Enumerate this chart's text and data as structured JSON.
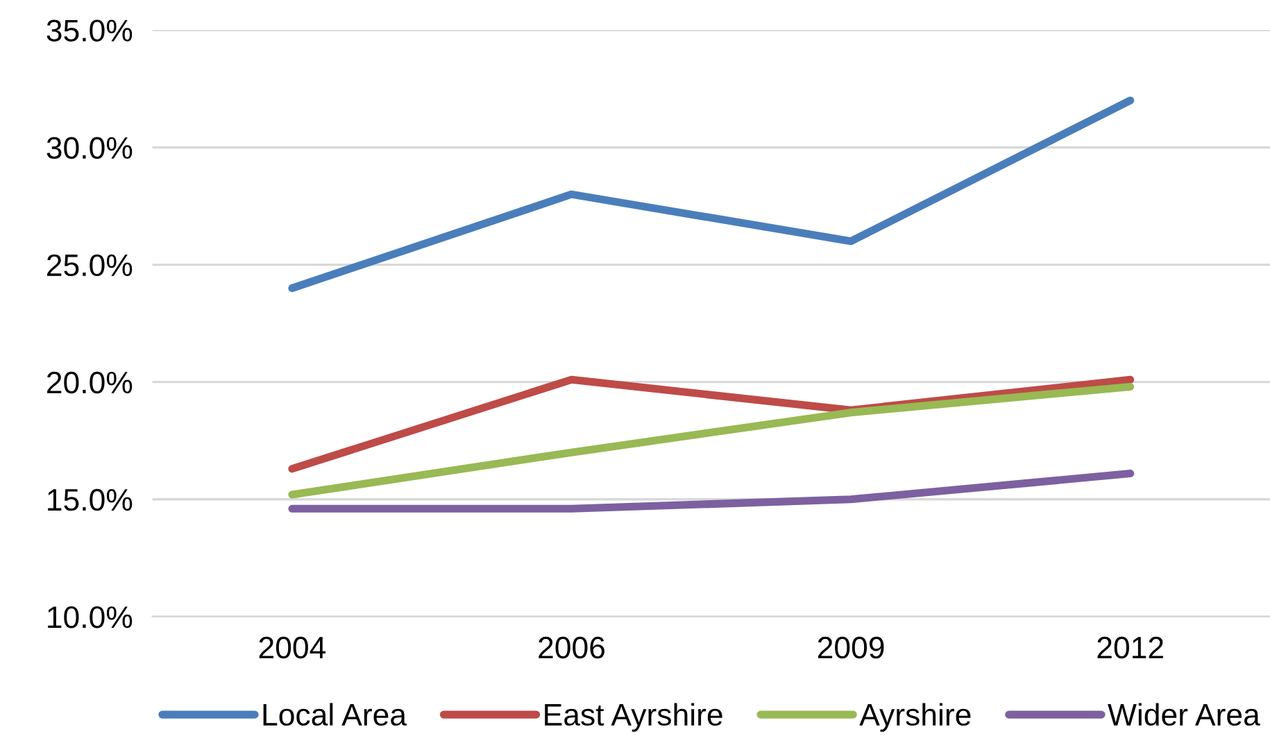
{
  "chart_data": {
    "type": "line",
    "categories": [
      "2004",
      "2006",
      "2009",
      "2012"
    ],
    "series": [
      {
        "name": "Local Area",
        "color": "#4a7ebb",
        "values": [
          24.0,
          28.0,
          26.0,
          32.0
        ]
      },
      {
        "name": "East Ayrshire",
        "color": "#be4b48",
        "values": [
          16.3,
          20.1,
          18.8,
          20.1
        ]
      },
      {
        "name": "Ayrshire",
        "color": "#98b954",
        "values": [
          15.2,
          17.0,
          18.7,
          19.8
        ]
      },
      {
        "name": "Wider Area",
        "color": "#7d60a0",
        "values": [
          14.6,
          14.6,
          15.0,
          16.1
        ]
      }
    ],
    "ylim": [
      10,
      35
    ],
    "yticks": [
      {
        "value": 10,
        "label": "10.0%"
      },
      {
        "value": 15,
        "label": "15.0%"
      },
      {
        "value": 20,
        "label": "20.0%"
      },
      {
        "value": 25,
        "label": "25.0%"
      },
      {
        "value": 30,
        "label": "30.0%"
      },
      {
        "value": 35,
        "label": "35.0%"
      }
    ],
    "grid": "y",
    "legend": "bottom",
    "marker": "none",
    "line_style": "solid"
  }
}
